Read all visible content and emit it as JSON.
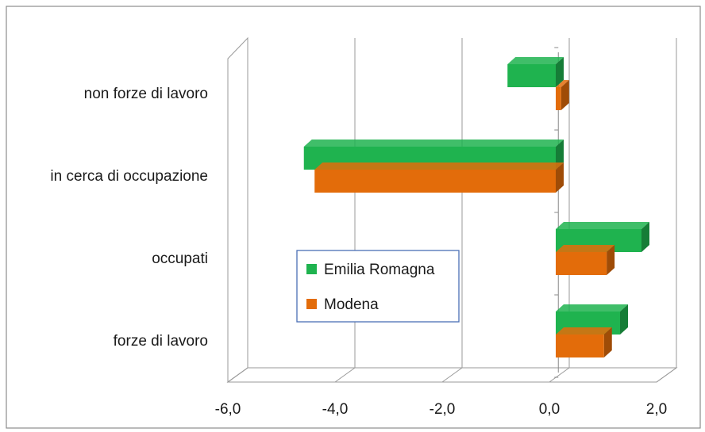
{
  "chart_data": {
    "type": "bar",
    "orientation": "horizontal",
    "three_d": true,
    "categories": [
      "forze di lavoro",
      "occupati",
      "in cerca di occupazione",
      "non forze di lavoro"
    ],
    "series": [
      {
        "name": "Emilia Romagna",
        "color": "#1fb34f",
        "values": [
          1.2,
          1.6,
          -4.7,
          -0.9
        ]
      },
      {
        "name": "Modena",
        "color": "#e36c0a",
        "values": [
          0.9,
          0.95,
          -4.5,
          0.1
        ]
      }
    ],
    "xlim": [
      -6,
      2
    ],
    "xticks": [
      -6,
      -4,
      -2,
      0,
      2
    ],
    "xtick_labels": [
      "-6,0",
      "-4,0",
      "-2,0",
      "0,0",
      "2,0"
    ],
    "grid": true,
    "legend": {
      "position": "center"
    }
  }
}
